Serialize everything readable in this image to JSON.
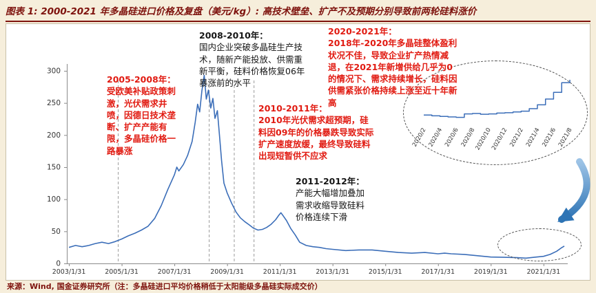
{
  "page": {
    "title": "图表 1: 2000-2021 年多晶硅进口价格及复盘（美元/kg）: 高技术壁垒、扩产不及预期分别导致前两轮硅料涨价",
    "footer_source": "来源：Wind, 国金证券研究所",
    "footer_note": "（注：多晶硅进口平均价格稍低于太阳能级多晶硅实际成交价）"
  },
  "colors": {
    "accent_red": "#e11b12",
    "title_maroon": "#7e120d",
    "line_blue": "#3a6db8",
    "arrow_blue": "#2e74b5",
    "background_beige": "#f6eedb"
  },
  "annotations": [
    {
      "header": "2005-2008年：",
      "body": "受欧美补贴政策刺激，光伏需求井喷，因德日技术垄断、扩产产能有限，多晶硅价格一路暴涨",
      "color": "red"
    },
    {
      "header": "2008-2010年：",
      "body": "国内企业突破多晶硅生产技术，随新产能投放、供需重新平衡，硅料价格恢复06年暴涨前的水平",
      "color": "black"
    },
    {
      "header": "2010-2011年：",
      "body": "2010年光伏需求超预期，硅料因09年的价格暴跌导致实际扩产速度放缓，最终导致硅料出现短暂供不应求",
      "color": "red"
    },
    {
      "header": "2011-2012年：",
      "body": "产能大幅增加叠加需求收缩导致硅料价格连续下滑",
      "color": "black"
    },
    {
      "header": "2020-2021年：",
      "body": "2018年-2020年多晶硅整体盈利状况不佳，导致企业扩产热情减退，在2021年新增供给几乎为0的情况下、需求持续增长，硅料因供需紧张价格持续上涨至近十年新高",
      "color": "red"
    }
  ],
  "chart_data": [
    {
      "type": "line",
      "name": "polysilicon-import-price-2003-2021",
      "title": "多晶硅进口价格（美元/kg）",
      "xlabel": "",
      "ylabel": "美元/kg",
      "xlim": [
        2003.0,
        2022.0
      ],
      "ylim": [
        0,
        300
      ],
      "grid": false,
      "yticks": [
        0,
        50,
        100,
        150,
        200,
        250,
        300
      ],
      "xticks": [
        {
          "v": 2003.08,
          "label": "2003/1/31"
        },
        {
          "v": 2005.08,
          "label": "2005/1/31"
        },
        {
          "v": 2007.08,
          "label": "2007/1/31"
        },
        {
          "v": 2009.08,
          "label": "2009/1/31"
        },
        {
          "v": 2011.08,
          "label": "2011/1/31"
        },
        {
          "v": 2013.08,
          "label": "2013/1/31"
        },
        {
          "v": 2015.08,
          "label": "2015/1/31"
        },
        {
          "v": 2017.08,
          "label": "2017/1/31"
        },
        {
          "v": 2019.08,
          "label": "2019/1/31"
        },
        {
          "v": 2021.08,
          "label": "2021/1/31"
        }
      ],
      "phase_lines": [
        2004.95,
        2008.4,
        2009.35,
        2010.1
      ],
      "points": [
        [
          2003.08,
          25
        ],
        [
          2003.33,
          28
        ],
        [
          2003.58,
          26
        ],
        [
          2003.83,
          28
        ],
        [
          2004.08,
          31
        ],
        [
          2004.33,
          33
        ],
        [
          2004.58,
          31
        ],
        [
          2004.83,
          34
        ],
        [
          2005.08,
          38
        ],
        [
          2005.33,
          43
        ],
        [
          2005.58,
          47
        ],
        [
          2005.83,
          52
        ],
        [
          2006.08,
          58
        ],
        [
          2006.33,
          70
        ],
        [
          2006.58,
          90
        ],
        [
          2006.83,
          115
        ],
        [
          2007.08,
          138
        ],
        [
          2007.17,
          150
        ],
        [
          2007.25,
          144
        ],
        [
          2007.42,
          154
        ],
        [
          2007.58,
          168
        ],
        [
          2007.75,
          190
        ],
        [
          2007.87,
          220
        ],
        [
          2007.96,
          248
        ],
        [
          2008.04,
          236
        ],
        [
          2008.12,
          268
        ],
        [
          2008.21,
          293
        ],
        [
          2008.29,
          256
        ],
        [
          2008.37,
          270
        ],
        [
          2008.46,
          242
        ],
        [
          2008.54,
          257
        ],
        [
          2008.62,
          226
        ],
        [
          2008.71,
          238
        ],
        [
          2008.79,
          200
        ],
        [
          2008.87,
          160
        ],
        [
          2008.96,
          125
        ],
        [
          2009.08,
          110
        ],
        [
          2009.25,
          94
        ],
        [
          2009.42,
          80
        ],
        [
          2009.58,
          71
        ],
        [
          2009.75,
          65
        ],
        [
          2009.92,
          60
        ],
        [
          2010.08,
          55
        ],
        [
          2010.25,
          52
        ],
        [
          2010.42,
          53
        ],
        [
          2010.58,
          56
        ],
        [
          2010.75,
          61
        ],
        [
          2010.92,
          68
        ],
        [
          2011.04,
          75
        ],
        [
          2011.12,
          79
        ],
        [
          2011.21,
          74
        ],
        [
          2011.33,
          67
        ],
        [
          2011.5,
          54
        ],
        [
          2011.67,
          44
        ],
        [
          2011.83,
          33
        ],
        [
          2012.08,
          28
        ],
        [
          2012.33,
          26
        ],
        [
          2012.58,
          25
        ],
        [
          2012.83,
          23
        ],
        [
          2013.08,
          22
        ],
        [
          2013.58,
          20
        ],
        [
          2014.08,
          21
        ],
        [
          2014.58,
          21
        ],
        [
          2015.08,
          19
        ],
        [
          2015.58,
          17
        ],
        [
          2016.08,
          16
        ],
        [
          2016.58,
          17
        ],
        [
          2017.08,
          15
        ],
        [
          2017.33,
          16
        ],
        [
          2017.58,
          15
        ],
        [
          2018.08,
          14
        ],
        [
          2018.58,
          12
        ],
        [
          2019.08,
          10
        ],
        [
          2019.58,
          9.5
        ],
        [
          2020.08,
          9
        ],
        [
          2020.42,
          8.2
        ],
        [
          2020.75,
          9.8
        ],
        [
          2021.08,
          11
        ],
        [
          2021.33,
          14
        ],
        [
          2021.58,
          19
        ],
        [
          2021.75,
          24
        ],
        [
          2021.87,
          27
        ]
      ]
    },
    {
      "type": "line",
      "style": "step",
      "name": "inset-monthly-price-2020-2021",
      "title": "2020/2-2021/8 月度价格放大",
      "ylim": [
        5,
        30
      ],
      "x_labels": [
        "2020/2",
        "2020/4",
        "2020/6",
        "2020/8",
        "2020/10",
        "2020/12",
        "2021/2",
        "2021/4",
        "2021/6",
        "2021/8"
      ],
      "values": [
        9.2,
        8.8,
        8.5,
        8.2,
        8.0,
        9.8,
        10.0,
        9.6,
        9.8,
        10.2,
        10.4,
        10.8,
        11.2,
        12.5,
        14.5,
        17.5,
        21.0,
        26.0,
        27.5
      ]
    }
  ]
}
